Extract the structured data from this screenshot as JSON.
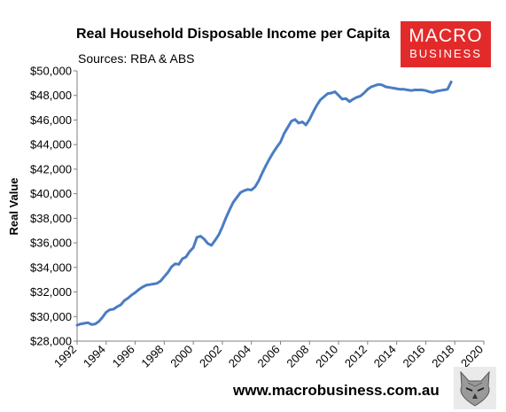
{
  "branding": {
    "logo_top": "MACRO",
    "logo_bottom": "BUSINESS",
    "website": "www.macrobusiness.com.au",
    "colors": {
      "logo_red": "#e32a2a",
      "line": "#4a7cc4",
      "axis": "#808080"
    },
    "mascot_icon": "wolf-head-icon"
  },
  "chart_data": {
    "type": "line",
    "title": "Real Household Disposable Income per Capita",
    "subtitle": "Sources: RBA & ABS",
    "xlabel": "",
    "ylabel": "Real Value",
    "xlim": [
      1992,
      2020
    ],
    "ylim": [
      28000,
      50000
    ],
    "grid": false,
    "legend": "none",
    "x_ticks": [
      "1992",
      "1994",
      "1996",
      "1998",
      "2000",
      "2002",
      "2004",
      "2006",
      "2008",
      "2010",
      "2012",
      "2014",
      "2016",
      "2018",
      "2020"
    ],
    "y_ticks": [
      "$28,000",
      "$30,000",
      "$32,000",
      "$34,000",
      "$36,000",
      "$38,000",
      "$40,000",
      "$42,000",
      "$44,000",
      "$46,000",
      "$48,000",
      "$50,000"
    ],
    "x_tick_values": [
      1992,
      1994,
      1996,
      1998,
      2000,
      2002,
      2004,
      2006,
      2008,
      2010,
      2012,
      2014,
      2016,
      2018,
      2020
    ],
    "y_tick_values": [
      28000,
      30000,
      32000,
      34000,
      36000,
      38000,
      40000,
      42000,
      44000,
      46000,
      48000,
      50000
    ],
    "series": [
      {
        "color": "#4a7cc4",
        "points": [
          [
            1992.0,
            29300
          ],
          [
            1992.25,
            29400
          ],
          [
            1992.5,
            29450
          ],
          [
            1992.75,
            29500
          ],
          [
            1993.0,
            29350
          ],
          [
            1993.25,
            29400
          ],
          [
            1993.5,
            29600
          ],
          [
            1993.75,
            29950
          ],
          [
            1994.0,
            30350
          ],
          [
            1994.25,
            30550
          ],
          [
            1994.5,
            30600
          ],
          [
            1994.75,
            30800
          ],
          [
            1995.0,
            30950
          ],
          [
            1995.25,
            31300
          ],
          [
            1995.5,
            31500
          ],
          [
            1995.75,
            31750
          ],
          [
            1996.0,
            31950
          ],
          [
            1996.25,
            32200
          ],
          [
            1996.5,
            32400
          ],
          [
            1996.75,
            32550
          ],
          [
            1997.0,
            32600
          ],
          [
            1997.25,
            32650
          ],
          [
            1997.5,
            32700
          ],
          [
            1997.75,
            32900
          ],
          [
            1998.0,
            33250
          ],
          [
            1998.25,
            33600
          ],
          [
            1998.5,
            34050
          ],
          [
            1998.75,
            34300
          ],
          [
            1999.0,
            34250
          ],
          [
            1999.25,
            34700
          ],
          [
            1999.5,
            34850
          ],
          [
            1999.75,
            35300
          ],
          [
            2000.0,
            35600
          ],
          [
            2000.25,
            36450
          ],
          [
            2000.5,
            36550
          ],
          [
            2000.75,
            36300
          ],
          [
            2001.0,
            35950
          ],
          [
            2001.25,
            35800
          ],
          [
            2001.5,
            36200
          ],
          [
            2001.75,
            36650
          ],
          [
            2002.0,
            37300
          ],
          [
            2002.25,
            38050
          ],
          [
            2002.5,
            38700
          ],
          [
            2002.75,
            39300
          ],
          [
            2003.0,
            39700
          ],
          [
            2003.25,
            40100
          ],
          [
            2003.5,
            40250
          ],
          [
            2003.75,
            40350
          ],
          [
            2004.0,
            40300
          ],
          [
            2004.25,
            40550
          ],
          [
            2004.5,
            41050
          ],
          [
            2004.75,
            41700
          ],
          [
            2005.0,
            42300
          ],
          [
            2005.25,
            42850
          ],
          [
            2005.5,
            43350
          ],
          [
            2005.75,
            43800
          ],
          [
            2006.0,
            44200
          ],
          [
            2006.25,
            44900
          ],
          [
            2006.5,
            45400
          ],
          [
            2006.75,
            45900
          ],
          [
            2007.0,
            46050
          ],
          [
            2007.25,
            45750
          ],
          [
            2007.5,
            45850
          ],
          [
            2007.75,
            45600
          ],
          [
            2008.0,
            46050
          ],
          [
            2008.25,
            46650
          ],
          [
            2008.5,
            47200
          ],
          [
            2008.75,
            47650
          ],
          [
            2009.0,
            47900
          ],
          [
            2009.25,
            48150
          ],
          [
            2009.5,
            48200
          ],
          [
            2009.75,
            48300
          ],
          [
            2010.0,
            48000
          ],
          [
            2010.25,
            47700
          ],
          [
            2010.5,
            47750
          ],
          [
            2010.75,
            47500
          ],
          [
            2011.0,
            47700
          ],
          [
            2011.25,
            47850
          ],
          [
            2011.5,
            47950
          ],
          [
            2011.75,
            48200
          ],
          [
            2012.0,
            48500
          ],
          [
            2012.25,
            48700
          ],
          [
            2012.5,
            48800
          ],
          [
            2012.75,
            48900
          ],
          [
            2013.0,
            48850
          ],
          [
            2013.25,
            48700
          ],
          [
            2013.5,
            48650
          ],
          [
            2013.75,
            48600
          ],
          [
            2014.0,
            48550
          ],
          [
            2014.25,
            48500
          ],
          [
            2014.5,
            48500
          ],
          [
            2014.75,
            48450
          ],
          [
            2015.0,
            48400
          ],
          [
            2015.25,
            48450
          ],
          [
            2015.5,
            48450
          ],
          [
            2015.75,
            48450
          ],
          [
            2016.0,
            48400
          ],
          [
            2016.25,
            48300
          ],
          [
            2016.5,
            48250
          ],
          [
            2016.75,
            48350
          ],
          [
            2017.0,
            48400
          ],
          [
            2017.25,
            48450
          ],
          [
            2017.5,
            48500
          ],
          [
            2017.75,
            49100
          ]
        ]
      }
    ]
  }
}
